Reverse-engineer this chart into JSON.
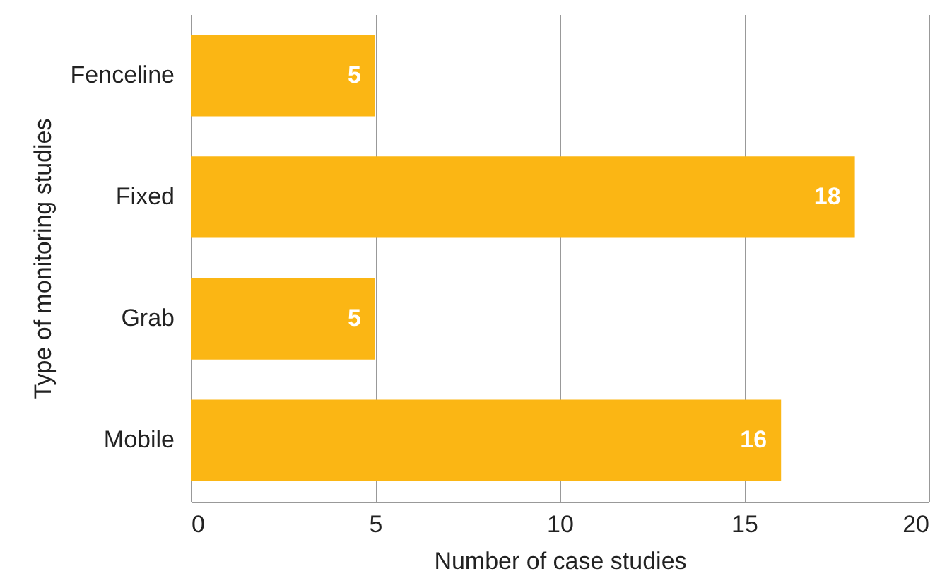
{
  "chart_data": {
    "type": "bar",
    "orientation": "horizontal",
    "xlabel": "Number of case studies",
    "ylabel": "Type of monitoring studies",
    "categories": [
      "Fenceline",
      "Fixed",
      "Grab",
      "Mobile"
    ],
    "values": [
      5,
      18,
      5,
      16
    ],
    "color": "#fbb614",
    "xlim": [
      0,
      20
    ],
    "xticks": [
      0,
      5,
      10,
      15,
      20
    ],
    "grid": "x",
    "data_labels": true
  }
}
